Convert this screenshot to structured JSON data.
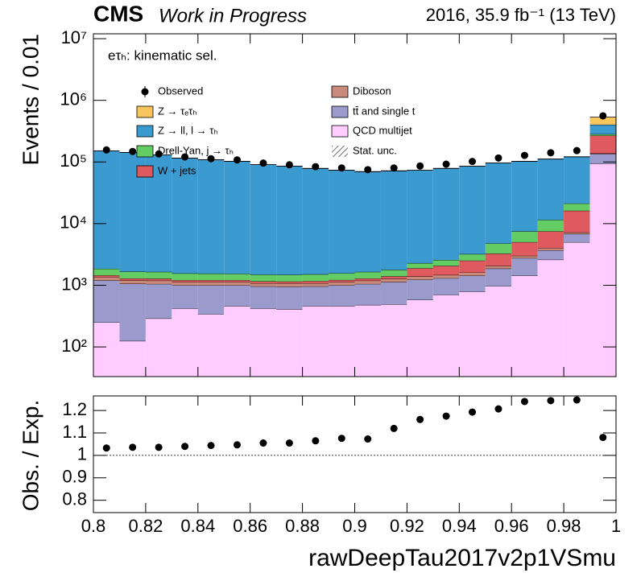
{
  "chart_data": [
    {
      "type": "histogram",
      "stacked": true,
      "log_y": true,
      "experiment": "CMS",
      "status": "Work in Progress",
      "lumi": "2016, 35.9 fb⁻¹ (13 TeV)",
      "annotation": "eτₕ: kinematic sel.",
      "ylabel": "Events / 0.01",
      "bins": [
        0.8,
        0.81,
        0.82,
        0.83,
        0.84,
        0.85,
        0.86,
        0.87,
        0.88,
        0.89,
        0.9,
        0.91,
        0.92,
        0.93,
        0.94,
        0.95,
        0.96,
        0.97,
        0.98,
        0.99,
        1.0
      ],
      "xlim": [
        0.8,
        1.0
      ],
      "xticks": [
        0.8,
        0.82,
        0.84,
        0.86,
        0.88,
        0.9,
        0.92,
        0.94,
        0.96,
        0.98,
        1
      ],
      "ylim": [
        33,
        12000000
      ],
      "yticks": [
        {
          "value": 100,
          "label": "10²"
        },
        {
          "value": 1000,
          "label": "10³"
        },
        {
          "value": 10000,
          "label": "10⁴"
        },
        {
          "value": 100000,
          "label": "10⁵"
        },
        {
          "value": 1000000,
          "label": "10⁶"
        },
        {
          "value": 10000000,
          "label": "10⁷"
        }
      ],
      "observed": {
        "name": "Observed",
        "color": "#000000",
        "values": [
          157000,
          148000,
          135000,
          121000,
          113000,
          108000,
          96000,
          90000,
          84000,
          80000,
          75000,
          80000,
          86000,
          92000,
          102000,
          116000,
          128000,
          141000,
          153000,
          560000
        ]
      },
      "series": [
        {
          "name": "Z → τₑτₕ",
          "color": "#f8c65c",
          "values": [
            60,
            60,
            60,
            60,
            60,
            60,
            60,
            60,
            60,
            60,
            60,
            60,
            60,
            60,
            70,
            80,
            90,
            100,
            200,
            130000
          ]
        },
        {
          "name": "Z → ll, l → τₕ",
          "color": "#3b9ad0",
          "values": [
            150000,
            141000,
            129000,
            114000,
            107000,
            101000,
            89000,
            84000,
            77000,
            72000,
            68000,
            70000,
            71000,
            76000,
            82000,
            92000,
            95000,
            100000,
            100000,
            120000
          ]
        },
        {
          "name": "Drell-Yan, j → τₕ",
          "color": "#63cc63",
          "values": [
            400,
            380,
            370,
            350,
            340,
            330,
            330,
            330,
            340,
            350,
            360,
            380,
            400,
            500,
            700,
            1500,
            2500,
            4000,
            5000,
            15000
          ]
        },
        {
          "name": "W + jets",
          "color": "#de5a5e",
          "values": [
            100,
            90,
            90,
            80,
            80,
            80,
            80,
            80,
            90,
            90,
            100,
            120,
            500,
            600,
            900,
            1200,
            2000,
            3500,
            9000,
            130000
          ]
        },
        {
          "name": "Diboson",
          "color": "#c98a7c",
          "values": [
            150,
            140,
            140,
            130,
            130,
            130,
            120,
            120,
            120,
            130,
            140,
            150,
            160,
            170,
            180,
            200,
            250,
            300,
            400,
            3000
          ]
        },
        {
          "name": "tt̄ and single t",
          "color": "#9a9acc",
          "values": [
            950,
            935,
            760,
            580,
            660,
            540,
            540,
            540,
            500,
            540,
            570,
            640,
            650,
            600,
            640,
            900,
            1330,
            1100,
            1800,
            41000
          ]
        },
        {
          "name": "QCD multijet",
          "color": "#ffccff",
          "values": [
            250,
            125,
            290,
            420,
            340,
            460,
            420,
            410,
            460,
            460,
            480,
            490,
            580,
            700,
            790,
            970,
            1430,
            2600,
            5000,
            94000
          ]
        }
      ],
      "stat_unc_label": "Stat. unc."
    },
    {
      "type": "scatter",
      "ylabel": "Obs. / Exp.",
      "xlabel": "rawDeepTau2017v2p1VSmu",
      "x": [
        0.805,
        0.815,
        0.825,
        0.835,
        0.845,
        0.855,
        0.865,
        0.875,
        0.885,
        0.895,
        0.905,
        0.915,
        0.925,
        0.935,
        0.945,
        0.955,
        0.965,
        0.975,
        0.985,
        0.995
      ],
      "values": [
        1.033,
        1.036,
        1.036,
        1.04,
        1.044,
        1.047,
        1.055,
        1.055,
        1.065,
        1.076,
        1.073,
        1.12,
        1.16,
        1.175,
        1.193,
        1.207,
        1.24,
        1.244,
        1.247,
        1.08
      ],
      "color": "#000000",
      "reference": 1,
      "xlim": [
        0.8,
        1.0
      ],
      "xticks": [
        0.8,
        0.82,
        0.84,
        0.86,
        0.88,
        0.9,
        0.92,
        0.94,
        0.96,
        0.98,
        1
      ],
      "ylim": [
        0.745,
        1.265
      ],
      "yticks": [
        0.8,
        0.9,
        1,
        1.1,
        1.2
      ]
    }
  ]
}
